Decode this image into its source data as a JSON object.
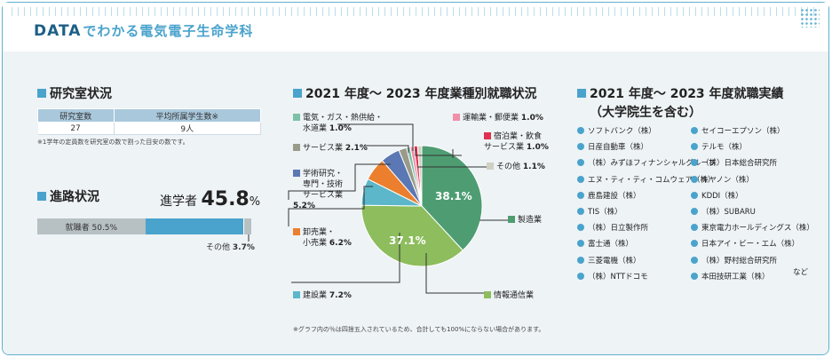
{
  "header": {
    "title_prefix": "DATA",
    "title_rest": "でわかる電気電子生命学科"
  },
  "lab": {
    "title": "研究室状況",
    "headers": [
      "研究室数",
      "平均所属学生数※"
    ],
    "values": [
      "27",
      "9人"
    ],
    "note": "※1学年の定員数を研究室の数で割った目安の数です。"
  },
  "progress": {
    "title": "進路状況",
    "employed_label": "就職者 50.5%",
    "grad_label": "進学者",
    "grad_value": "45.8",
    "grad_unit": "%",
    "other_label": "その他",
    "other_value": "3.7%",
    "shares": {
      "employed": 50.5,
      "grad": 45.8,
      "other": 3.7
    }
  },
  "industry": {
    "title": "2021 年度～ 2023 年度業種別就職状況",
    "note": "※グラフ内の％は四捨五入されているため、合計しても100%にならない場合があります。",
    "labels": {
      "seizo": "製造業",
      "joho": "情報通信業",
      "kensetsu_name": "建設業",
      "kensetsu_val": "7.2%",
      "oroshi_1": "卸売業・",
      "oroshi_2": "小売業",
      "oroshi_val": "6.2%",
      "gakujutsu_1": "学術研究・",
      "gakujutsu_2": "専門・技術",
      "gakujutsu_3": "サービス業",
      "gakujutsu_val": "5.2%",
      "service_name": "サービス業",
      "service_val": "2.1%",
      "denki_1": "電気・ガス・熱供給・",
      "denki_2": "水道業",
      "denki_val": "1.0%",
      "unyu_name": "運輸業・郵便業",
      "unyu_val": "1.0%",
      "shukuhaku_1": "宿泊業・飲食",
      "shukuhaku_2": "サービス業",
      "shukuhaku_val": "1.0%",
      "sonota_name": "その他",
      "sonota_val": "1.1%"
    },
    "inner_labels": {
      "seizo": "38.1%",
      "joho": "37.1%"
    }
  },
  "chart_data": {
    "type": "pie",
    "title": "2021 年度～ 2023 年度業種別就職状況",
    "slices": [
      {
        "name": "製造業",
        "value": 38.1,
        "color": "#4e9d72"
      },
      {
        "name": "情報通信業",
        "value": 37.1,
        "color": "#8dbd5d"
      },
      {
        "name": "建設業",
        "value": 7.2,
        "color": "#5bb7c9"
      },
      {
        "name": "卸売業・小売業",
        "value": 6.2,
        "color": "#eb7f2e"
      },
      {
        "name": "学術研究・専門・技術サービス業",
        "value": 5.2,
        "color": "#5b78b4"
      },
      {
        "name": "サービス業",
        "value": 2.1,
        "color": "#9a9a8a"
      },
      {
        "name": "電気・ガス・熱供給・水道業",
        "value": 1.0,
        "color": "#7cc0a8"
      },
      {
        "name": "運輸業・郵便業",
        "value": 1.0,
        "color": "#ef8fa9"
      },
      {
        "name": "宿泊業・飲食サービス業",
        "value": 1.0,
        "color": "#e0314e"
      },
      {
        "name": "その他",
        "value": 1.1,
        "color": "#cfcfc4"
      }
    ]
  },
  "employment": {
    "title_1": "2021 年度～ 2023 年度就職実績",
    "title_2": "（大学院生を含む）",
    "col1": [
      "ソフトバンク（株）",
      "日産自動車（株）",
      "（株）みずほフィナンシャルグループ",
      "エヌ・ティ・ティ・コムウェア（株）",
      "鹿島建設（株）",
      "TIS（株）",
      "（株）日立製作所",
      "富士通（株）",
      "三菱電機（株）",
      "（株）NTTドコモ"
    ],
    "col2": [
      "セイコーエプソン（株）",
      "テルモ（株）",
      "（株）日本総合研究所",
      "キヤノン（株）",
      "KDDI（株）",
      "（株）SUBARU",
      "東京電力ホールディングス（株）",
      "日本アイ・ビー・エム（株）",
      "（株）野村総合研究所",
      "本田技研工業（株）"
    ],
    "etc": "など"
  }
}
